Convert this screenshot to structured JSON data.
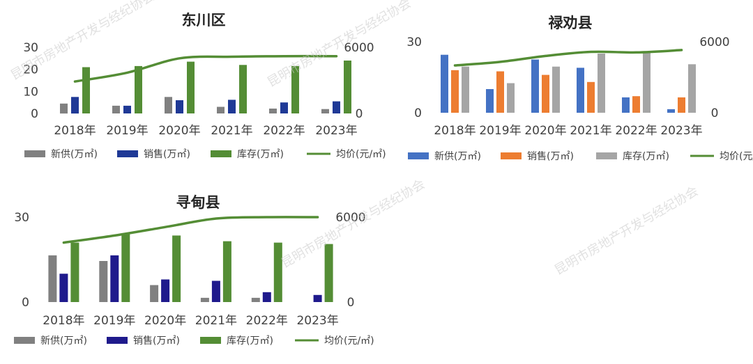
{
  "chart_data": [
    {
      "type": "bar",
      "title": "东川区",
      "categories": [
        "2018年",
        "2019年",
        "2020年",
        "2021年",
        "2022年",
        "2023年"
      ],
      "y_left_ticks": [
        "0",
        "10",
        "20",
        "30"
      ],
      "y_right_ticks": [
        "0",
        "6000"
      ],
      "ylim_left": [
        0,
        30
      ],
      "ylim_right": [
        0,
        6000
      ],
      "series": [
        {
          "name": "新供(万㎡)",
          "type": "bar",
          "axis": "left",
          "color": "#808080",
          "values": [
            4.5,
            3.5,
            7.5,
            3,
            2.2,
            2
          ]
        },
        {
          "name": "销售(万㎡)",
          "type": "bar",
          "axis": "left",
          "color": "#1f3996",
          "values": [
            7.5,
            3.5,
            6,
            6.2,
            5,
            5.5
          ]
        },
        {
          "name": "库存(万㎡)",
          "type": "bar",
          "axis": "left",
          "color": "#548d35",
          "values": [
            21,
            21.5,
            23.5,
            22,
            21.5,
            24
          ]
        },
        {
          "name": "均价(元/㎡)",
          "type": "line",
          "axis": "right",
          "color": "#548d35",
          "values": [
            2900,
            3700,
            5000,
            5150,
            5200,
            5200
          ]
        }
      ]
    },
    {
      "type": "bar",
      "title": "禄劝县",
      "categories": [
        "2018年",
        "2019年",
        "2020年",
        "2021年",
        "2022年",
        "2023年"
      ],
      "y_left_ticks": [
        "0",
        "30"
      ],
      "y_right_ticks": [
        "0",
        "6000"
      ],
      "ylim_left": [
        0,
        30
      ],
      "ylim_right": [
        0,
        6000
      ],
      "series": [
        {
          "name": "新供(万㎡)",
          "type": "bar",
          "axis": "left",
          "color": "#4472c4",
          "values": [
            24.5,
            10,
            22.5,
            19,
            6.5,
            1.5
          ]
        },
        {
          "name": "销售(万㎡)",
          "type": "bar",
          "axis": "left",
          "color": "#ed7d31",
          "values": [
            18,
            17.5,
            16,
            13,
            7,
            6.5
          ]
        },
        {
          "name": "库存(万㎡)",
          "type": "bar",
          "axis": "left",
          "color": "#a5a5a5",
          "values": [
            19.5,
            12.5,
            19.5,
            25,
            26,
            20.5
          ]
        },
        {
          "name": "均价(元/㎡)",
          "type": "line",
          "axis": "right",
          "color": "#548d35",
          "values": [
            4000,
            4300,
            4800,
            5150,
            5100,
            5300
          ]
        }
      ]
    },
    {
      "type": "bar",
      "title": "寻甸县",
      "categories": [
        "2018年",
        "2019年",
        "2020年",
        "2021年",
        "2022年",
        "2023年"
      ],
      "y_left_ticks": [
        "0",
        "30"
      ],
      "y_right_ticks": [
        "0",
        "6000"
      ],
      "ylim_left": [
        0,
        30
      ],
      "ylim_right": [
        0,
        6000
      ],
      "series": [
        {
          "name": "新供(万㎡)",
          "type": "bar",
          "axis": "left",
          "color": "#808080",
          "values": [
            16.5,
            14.5,
            6,
            1.5,
            1.5,
            0
          ]
        },
        {
          "name": "销售(万㎡)",
          "type": "bar",
          "axis": "left",
          "color": "#1f1a8c",
          "values": [
            10,
            16.5,
            8,
            7.5,
            3.5,
            2.5
          ]
        },
        {
          "name": "库存(万㎡)",
          "type": "bar",
          "axis": "left",
          "color": "#548d35",
          "values": [
            21,
            24,
            23.5,
            21.5,
            21,
            20.5
          ]
        },
        {
          "name": "均价(元/㎡)",
          "type": "line",
          "axis": "right",
          "color": "#548d35",
          "values": [
            4200,
            4700,
            5300,
            5900,
            6000,
            6000
          ]
        }
      ]
    }
  ],
  "watermark": "昆明市房地产开发与经纪协会"
}
